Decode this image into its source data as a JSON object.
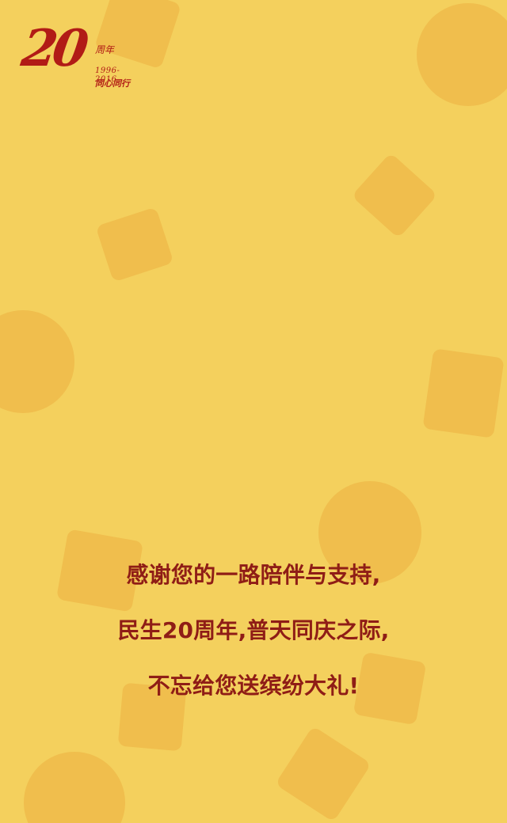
{
  "logo": {
    "number": "20",
    "zhou": "周年",
    "years": "1996-2016",
    "slogan": "同心同行"
  },
  "message": {
    "lines": [
      "感谢您的一路陪伴与支持,",
      "民生20周年,普天同庆之际,",
      "不忘给您送缤纷大礼!"
    ]
  },
  "colors": {
    "background": "#f4d05d",
    "shape": "#efbd4c",
    "text": "#8f1d16",
    "logo": "#b11b16"
  }
}
